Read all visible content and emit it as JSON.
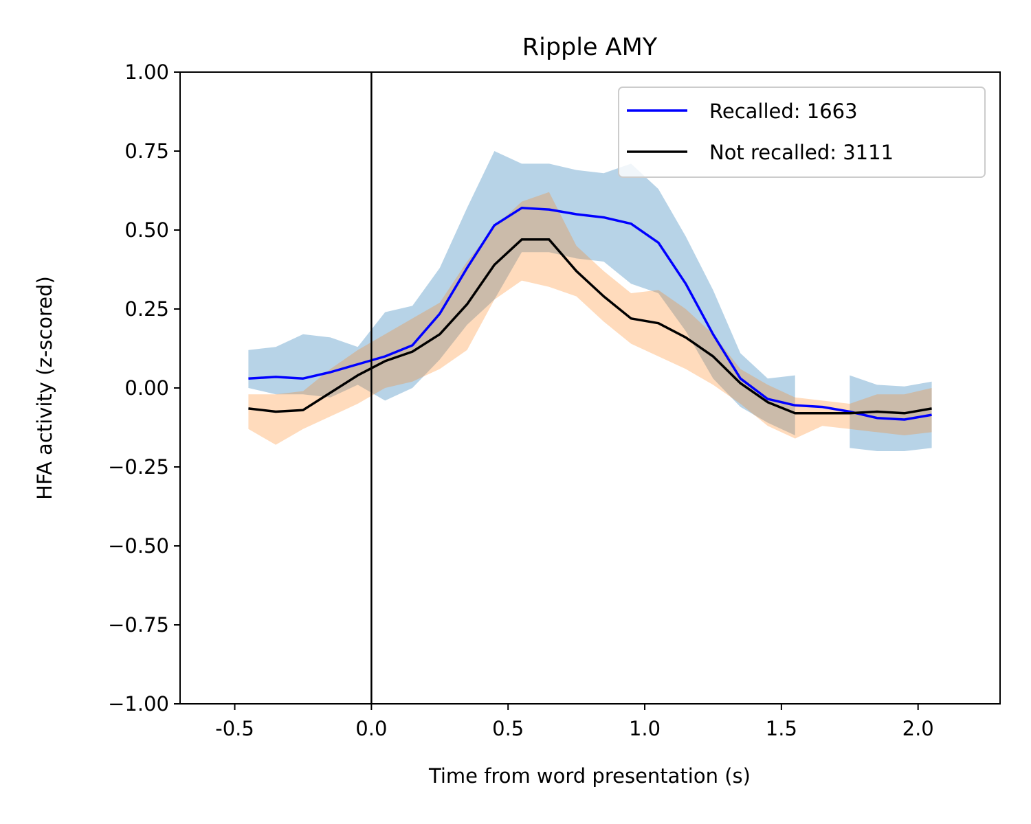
{
  "chart_data": {
    "type": "line",
    "title": "Ripple AMY",
    "xlabel": "Time from word presentation (s)",
    "ylabel": "HFA activity (z-scored)",
    "xlim": [
      -0.7,
      2.3
    ],
    "ylim": [
      -1.0,
      1.0
    ],
    "xticks": [
      {
        "value": -0.5,
        "label": "-0.5"
      },
      {
        "value": 0.0,
        "label": "0.0"
      },
      {
        "value": 0.5,
        "label": "0.5"
      },
      {
        "value": 1.0,
        "label": "1.0"
      },
      {
        "value": 1.5,
        "label": "1.5"
      },
      {
        "value": 2.0,
        "label": "2.0"
      }
    ],
    "yticks": [
      {
        "value": 1.0,
        "label": "1.00"
      },
      {
        "value": 0.75,
        "label": "0.75"
      },
      {
        "value": 0.5,
        "label": "0.50"
      },
      {
        "value": 0.25,
        "label": "0.25"
      },
      {
        "value": 0.0,
        "label": "0.00"
      },
      {
        "value": -0.25,
        "label": "−0.25"
      },
      {
        "value": -0.5,
        "label": "−0.50"
      },
      {
        "value": -0.75,
        "label": "−0.75"
      },
      {
        "value": -1.0,
        "label": "−1.00"
      }
    ],
    "grid": false,
    "vertical_reference_line": 0.0,
    "legend_position": "top-right",
    "x": [
      -0.45,
      -0.35,
      -0.25,
      -0.15,
      -0.05,
      0.05,
      0.15,
      0.25,
      0.35,
      0.45,
      0.55,
      0.65,
      0.75,
      0.85,
      0.95,
      1.05,
      1.15,
      1.25,
      1.35,
      1.45,
      1.55,
      1.65,
      1.75,
      1.85,
      1.95,
      2.05
    ],
    "series": [
      {
        "name": "Recalled: 1663",
        "color": "#0000ff",
        "band_color": "#1f77b4",
        "band_opacity": 0.32,
        "values": [
          0.03,
          0.035,
          0.03,
          0.05,
          0.075,
          0.1,
          0.135,
          0.235,
          0.38,
          0.515,
          0.57,
          0.565,
          0.55,
          0.54,
          0.52,
          0.46,
          0.33,
          0.17,
          0.03,
          -0.035,
          -0.055,
          -0.06,
          -0.075,
          -0.095,
          -0.1,
          -0.085
        ],
        "upper": [
          0.12,
          0.13,
          0.17,
          0.16,
          0.13,
          0.24,
          0.26,
          0.38,
          0.57,
          0.75,
          0.71,
          0.71,
          0.69,
          0.68,
          0.71,
          0.63,
          0.48,
          0.31,
          0.11,
          0.03,
          0.04,
          null,
          0.04,
          0.01,
          0.005,
          0.02
        ],
        "lower": [
          0.0,
          -0.02,
          -0.02,
          -0.03,
          0.01,
          -0.04,
          0.0,
          0.09,
          0.2,
          0.28,
          0.43,
          0.43,
          0.41,
          0.4,
          0.33,
          0.3,
          0.18,
          0.03,
          -0.06,
          -0.11,
          -0.15,
          null,
          -0.19,
          -0.2,
          -0.2,
          -0.19
        ]
      },
      {
        "name": "Not recalled: 3111",
        "color": "#000000",
        "band_color": "#ff7f0e",
        "band_opacity": 0.28,
        "values": [
          -0.065,
          -0.075,
          -0.07,
          -0.015,
          0.04,
          0.085,
          0.115,
          0.17,
          0.265,
          0.39,
          0.47,
          0.47,
          0.37,
          0.29,
          0.22,
          0.205,
          0.16,
          0.1,
          0.015,
          -0.045,
          -0.08,
          -0.08,
          -0.08,
          -0.075,
          -0.08,
          -0.065
        ],
        "upper": [
          -0.02,
          -0.02,
          -0.01,
          0.06,
          0.12,
          0.17,
          0.22,
          0.27,
          0.4,
          0.51,
          0.59,
          0.62,
          0.45,
          0.37,
          0.3,
          0.31,
          0.25,
          0.17,
          0.06,
          0.01,
          -0.03,
          -0.04,
          -0.05,
          -0.02,
          -0.02,
          0.0
        ],
        "lower": [
          -0.13,
          -0.18,
          -0.13,
          -0.09,
          -0.05,
          0.0,
          0.02,
          0.06,
          0.12,
          0.28,
          0.34,
          0.32,
          0.29,
          0.21,
          0.14,
          0.1,
          0.06,
          0.01,
          -0.05,
          -0.12,
          -0.16,
          -0.12,
          -0.13,
          -0.14,
          -0.15,
          -0.14
        ]
      }
    ]
  }
}
